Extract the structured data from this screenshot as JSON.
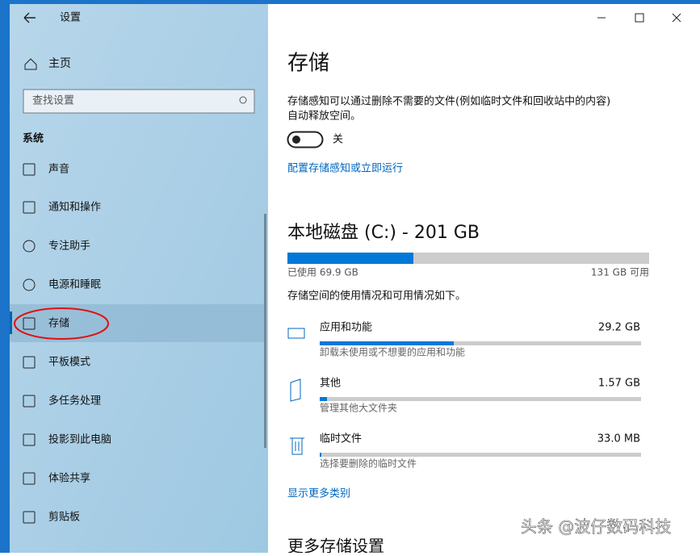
{
  "window": {
    "title": "设置"
  },
  "sidebar": {
    "home": "主页",
    "search_placeholder": "查找设置",
    "section": "系统",
    "items": [
      "声音",
      "通知和操作",
      "专注助手",
      "电源和睡眠",
      "存储",
      "平板模式",
      "多任务处理",
      "投影到此电脑",
      "体验共享",
      "剪贴板"
    ]
  },
  "main": {
    "title": "存储",
    "description": [
      "存储感知可以通过删除不需要的文件(例如临时文件和回收站中的内容)",
      "自动释放空间。"
    ],
    "toggle_label": "关",
    "configure_link": "配置存储感知或立即运行",
    "disk": {
      "title": "本地磁盘 (C:) - 201 GB",
      "used": "已使用 69.9 GB",
      "free": "131 GB 可用"
    },
    "usage_intro": "存储空间的使用情况和可用情况如下。",
    "categories": [
      {
        "name": "应用和功能",
        "size": "29.2 GB",
        "description": "卸载未使用或不想要的应用和功能"
      },
      {
        "name": "其他",
        "size": "1.57 GB",
        "description": "管理其他大文件夹"
      },
      {
        "name": "临时文件",
        "size": "33.0 MB",
        "description": "选择要删除的临时文件"
      }
    ],
    "show_more": "显示更多类别",
    "more_settings": "更多存储设置"
  },
  "watermark": "头条 @波仔数码科技"
}
